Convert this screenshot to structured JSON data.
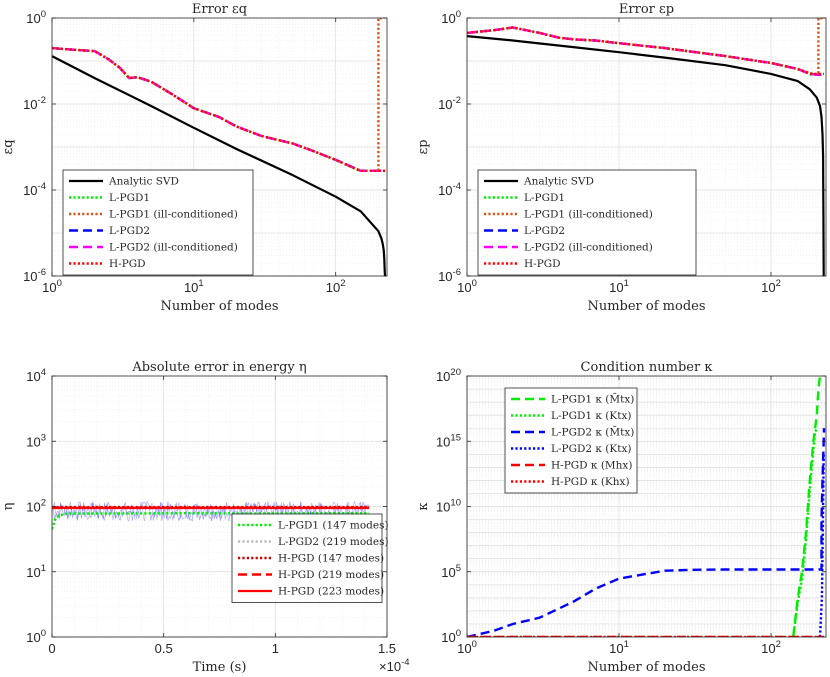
{
  "chart_data": [
    {
      "id": "eq",
      "type": "line",
      "title": "Error εq",
      "xlabel": "Number of modes",
      "ylabel": "εq",
      "xscale": "log",
      "yscale": "log",
      "xlim": [
        1,
        230
      ],
      "ylim": [
        1e-06,
        1
      ],
      "xticks": [
        1,
        10,
        100
      ],
      "xtick_labels": [
        "10",
        "10",
        "10"
      ],
      "xtick_exp": [
        "0",
        "1",
        "2"
      ],
      "yticks": [
        1e-06,
        0.0001,
        0.01,
        1
      ],
      "ytick_labels": [
        "10",
        "10",
        "10",
        "10"
      ],
      "ytick_exp": [
        "-6",
        "-4",
        "-2",
        "0"
      ],
      "grid": true,
      "legend_position": "bottom-left",
      "legend": [
        {
          "label": "Analytic SVD",
          "color": "#000000",
          "style": "solid"
        },
        {
          "label": "L-PGD1",
          "color": "#00ee00",
          "style": "dotted"
        },
        {
          "label": "L-PGD1 (ill-conditioned)",
          "color": "#d95319",
          "style": "dotted"
        },
        {
          "label": "L-PGD2",
          "color": "#0000ff",
          "style": "dashed"
        },
        {
          "label": "L-PGD2 (ill-conditioned)",
          "color": "#ff00ff",
          "style": "dashed"
        },
        {
          "label": "H-PGD",
          "color": "#ff0000",
          "style": "dotted"
        }
      ],
      "series": [
        {
          "name": "Analytic SVD",
          "color": "#000000",
          "style": "solid",
          "x": [
            1,
            2,
            5,
            10,
            20,
            50,
            100,
            150,
            200,
            210,
            215,
            218,
            220,
            221,
            222,
            223
          ],
          "y": [
            0.13,
            0.04,
            0.009,
            0.0028,
            0.0009,
            0.00022,
            7e-05,
            3.2e-05,
            1.1e-05,
            7.5e-06,
            5.5e-06,
            4e-06,
            2.5e-06,
            1.8e-06,
            1.2e-06,
            1e-06
          ]
        },
        {
          "name": "L-PGD2",
          "color": "#0000ff",
          "style": "dashed",
          "x": [
            1,
            1.5,
            2,
            2.5,
            3,
            3.5,
            4,
            5,
            7,
            10,
            15,
            20,
            30,
            50,
            70,
            100,
            150,
            200,
            220
          ],
          "y": [
            0.2,
            0.18,
            0.17,
            0.11,
            0.07,
            0.04,
            0.042,
            0.033,
            0.017,
            0.008,
            0.005,
            0.003,
            0.0018,
            0.0012,
            0.0008,
            0.0005,
            0.00028,
            0.00028,
            0.00028
          ]
        },
        {
          "name": "L-PGD2 (ill-conditioned)",
          "color": "#ff00ff",
          "style": "dashed",
          "x": [
            1,
            1.5,
            2,
            2.5,
            3,
            3.5,
            4,
            5,
            7,
            10,
            15,
            20,
            30,
            50,
            70,
            100,
            150,
            200,
            220
          ],
          "y": [
            0.2,
            0.18,
            0.17,
            0.11,
            0.07,
            0.04,
            0.042,
            0.033,
            0.017,
            0.008,
            0.005,
            0.003,
            0.0018,
            0.0012,
            0.0008,
            0.0005,
            0.00028,
            0.00028,
            0.00028
          ]
        },
        {
          "name": "L-PGD1",
          "color": "#00ee00",
          "style": "dotted",
          "x": [
            1,
            1.5,
            2,
            2.5,
            3,
            3.5,
            4,
            5,
            7,
            10,
            15,
            20,
            30,
            50,
            70,
            100,
            147
          ],
          "y": [
            0.2,
            0.18,
            0.17,
            0.11,
            0.07,
            0.04,
            0.042,
            0.033,
            0.017,
            0.008,
            0.005,
            0.003,
            0.0018,
            0.0012,
            0.0008,
            0.0005,
            0.00028
          ]
        },
        {
          "name": "L-PGD1 (ill-conditioned)",
          "color": "#d95319",
          "style": "dotted",
          "x": [
            1,
            1.5,
            2,
            2.5,
            3,
            3.5,
            4,
            5,
            7,
            10,
            15,
            20,
            30,
            50,
            70,
            100,
            150,
            190,
            200,
            200,
            210,
            220
          ],
          "y": [
            0.2,
            0.18,
            0.17,
            0.11,
            0.07,
            0.04,
            0.042,
            0.033,
            0.017,
            0.008,
            0.005,
            0.003,
            0.0018,
            0.0012,
            0.0008,
            0.0005,
            0.00028,
            0.00028,
            0.00028,
            1,
            1,
            1
          ]
        },
        {
          "name": "H-PGD",
          "color": "#ff0000",
          "style": "dotted",
          "x": [
            1,
            1.5,
            2,
            2.5,
            3,
            3.5,
            4,
            5,
            7,
            10,
            15,
            20,
            30,
            50,
            70,
            100,
            150,
            200,
            223
          ],
          "y": [
            0.2,
            0.18,
            0.17,
            0.11,
            0.07,
            0.04,
            0.042,
            0.033,
            0.017,
            0.008,
            0.005,
            0.003,
            0.0018,
            0.0012,
            0.0008,
            0.0005,
            0.00028,
            0.00028,
            0.00028
          ]
        }
      ]
    },
    {
      "id": "ep",
      "type": "line",
      "title": "Error εp",
      "xlabel": "Number of modes",
      "ylabel": "εp",
      "xscale": "log",
      "yscale": "log",
      "xlim": [
        1,
        230
      ],
      "ylim": [
        1e-06,
        1
      ],
      "xticks": [
        1,
        10,
        100
      ],
      "xtick_labels": [
        "10",
        "10",
        "10"
      ],
      "xtick_exp": [
        "0",
        "1",
        "2"
      ],
      "yticks": [
        1e-06,
        0.0001,
        0.01,
        1
      ],
      "ytick_labels": [
        "10",
        "10",
        "10",
        "10"
      ],
      "ytick_exp": [
        "-6",
        "-4",
        "-2",
        "0"
      ],
      "grid": true,
      "legend_position": "bottom-left",
      "legend": [
        {
          "label": "Analytic SVD",
          "color": "#000000",
          "style": "solid"
        },
        {
          "label": "L-PGD1",
          "color": "#00ee00",
          "style": "dotted"
        },
        {
          "label": "L-PGD1 (ill-conditioned)",
          "color": "#d95319",
          "style": "dotted"
        },
        {
          "label": "L-PGD2",
          "color": "#0000ff",
          "style": "dashed"
        },
        {
          "label": "L-PGD2 (ill-conditioned)",
          "color": "#ff00ff",
          "style": "dashed"
        },
        {
          "label": "H-PGD",
          "color": "#ff0000",
          "style": "dotted"
        }
      ],
      "series": [
        {
          "name": "Analytic SVD",
          "color": "#000000",
          "style": "solid",
          "x": [
            1,
            2,
            5,
            10,
            20,
            50,
            100,
            150,
            180,
            200,
            210,
            215,
            218,
            220,
            221,
            222
          ],
          "y": [
            0.38,
            0.3,
            0.21,
            0.16,
            0.12,
            0.08,
            0.05,
            0.034,
            0.022,
            0.014,
            0.009,
            0.005,
            0.002,
            0.0006,
            3e-05,
            1e-06
          ]
        },
        {
          "name": "L-PGD2",
          "color": "#0000ff",
          "style": "dashed",
          "x": [
            1,
            1.5,
            2,
            3,
            4,
            5,
            7,
            10,
            20,
            50,
            100,
            150,
            180,
            200,
            220
          ],
          "y": [
            0.45,
            0.52,
            0.6,
            0.45,
            0.35,
            0.32,
            0.3,
            0.26,
            0.2,
            0.13,
            0.09,
            0.065,
            0.05,
            0.048,
            0.048
          ]
        },
        {
          "name": "L-PGD2 (ill-conditioned)",
          "color": "#ff00ff",
          "style": "dashed",
          "x": [
            1,
            1.5,
            2,
            3,
            4,
            5,
            7,
            10,
            20,
            50,
            100,
            150,
            180,
            200,
            220
          ],
          "y": [
            0.45,
            0.52,
            0.6,
            0.45,
            0.35,
            0.32,
            0.3,
            0.26,
            0.2,
            0.13,
            0.09,
            0.065,
            0.05,
            0.048,
            0.048
          ]
        },
        {
          "name": "L-PGD1",
          "color": "#00ee00",
          "style": "dotted",
          "x": [
            1,
            1.5,
            2,
            3,
            4,
            5,
            7,
            10,
            20,
            50,
            100,
            147,
            170,
            190
          ],
          "y": [
            0.45,
            0.52,
            0.6,
            0.45,
            0.35,
            0.32,
            0.3,
            0.26,
            0.2,
            0.13,
            0.09,
            0.066,
            0.055,
            0.045
          ]
        },
        {
          "name": "L-PGD1 (ill-conditioned)",
          "color": "#d95319",
          "style": "dotted",
          "x": [
            1,
            1.5,
            2,
            3,
            4,
            5,
            7,
            10,
            20,
            50,
            100,
            150,
            190,
            205,
            205,
            215,
            222
          ],
          "y": [
            0.45,
            0.52,
            0.6,
            0.45,
            0.35,
            0.32,
            0.3,
            0.26,
            0.2,
            0.13,
            0.09,
            0.065,
            0.05,
            0.05,
            1,
            1,
            1
          ]
        },
        {
          "name": "H-PGD",
          "color": "#ff0000",
          "style": "dotted",
          "x": [
            1,
            1.5,
            2,
            3,
            4,
            5,
            7,
            10,
            20,
            50,
            100,
            150,
            180,
            200,
            223
          ],
          "y": [
            0.45,
            0.52,
            0.6,
            0.45,
            0.35,
            0.32,
            0.3,
            0.26,
            0.2,
            0.13,
            0.09,
            0.065,
            0.05,
            0.05,
            0.05
          ]
        }
      ]
    },
    {
      "id": "eta",
      "type": "line",
      "title": "Absolute error in energy η",
      "xlabel": "Time (s)",
      "ylabel": "η",
      "xscale": "linear",
      "yscale": "log",
      "xlim": [
        0,
        0.00015
      ],
      "ylim": [
        1,
        10000
      ],
      "x_multiplier": "×10",
      "x_multiplier_exp": "-4",
      "xticks": [
        0,
        5e-05,
        0.0001,
        0.00015
      ],
      "xtick_labels": [
        "0",
        "0.5",
        "1",
        "1.5"
      ],
      "yticks": [
        1,
        10,
        100,
        1000,
        10000
      ],
      "ytick_labels": [
        "10",
        "10",
        "10",
        "10",
        "10"
      ],
      "ytick_exp": [
        "0",
        "1",
        "2",
        "3",
        "4"
      ],
      "grid": true,
      "legend_position": "bottom-right",
      "legend": [
        {
          "label": "L-PGD1 (147 modes)",
          "color": "#00ee00",
          "style": "dotted"
        },
        {
          "label": "L-PGD2 (219 modes)",
          "color": "#bbbbbb",
          "style": "dotted"
        },
        {
          "label": "H-PGD (147 modes)",
          "color": "#cc0000",
          "style": "dotted"
        },
        {
          "label": "H-PGD (219 modes)",
          "color": "#ff0000",
          "style": "dashed"
        },
        {
          "label": "H-PGD (223 modes)",
          "color": "#ff0000",
          "style": "solid"
        }
      ],
      "band": {
        "name": "L-PGD2 (219 modes)",
        "color": "#3b3bf0",
        "low": 60,
        "high": 120,
        "x_end": 0.000142
      },
      "series": [
        {
          "name": "L-PGD1 (147 modes)",
          "color": "#00ee00",
          "style": "dotted",
          "x": [
            0,
            1.5e-06,
            3e-06,
            4.5e-06,
            6e-06,
            7.5e-06,
            3e-05,
            6e-05,
            9e-05,
            0.00012,
            0.000142
          ],
          "y": [
            45,
            65,
            72,
            75,
            77,
            78,
            78,
            79,
            78,
            79,
            79
          ]
        },
        {
          "name": "H-PGD (147 modes)",
          "color": "#cc0000",
          "style": "dotted",
          "x": [
            0,
            0.000142
          ],
          "y": [
            98,
            98
          ]
        },
        {
          "name": "H-PGD (219 modes)",
          "color": "#ff0000",
          "style": "dashed",
          "x": [
            0,
            0.000142
          ],
          "y": [
            96,
            96
          ]
        },
        {
          "name": "H-PGD (223 modes)",
          "color": "#ff0000",
          "style": "solid",
          "x": [
            0,
            0.000142
          ],
          "y": [
            95,
            95
          ]
        }
      ]
    },
    {
      "id": "kappa",
      "type": "line",
      "title": "Condition number κ",
      "xlabel": "Number of modes",
      "ylabel": "κ",
      "xscale": "log",
      "yscale": "log",
      "xlim": [
        1,
        230
      ],
      "ylim": [
        1,
        1e+20
      ],
      "xticks": [
        1,
        10,
        100
      ],
      "xtick_labels": [
        "10",
        "10",
        "10"
      ],
      "xtick_exp": [
        "0",
        "1",
        "2"
      ],
      "yticks": [
        1,
        100000.0,
        10000000000.0,
        1000000000000000.0,
        1e+20
      ],
      "ytick_labels": [
        "10",
        "10",
        "10",
        "10",
        "10"
      ],
      "ytick_exp": [
        "0",
        "5",
        "10",
        "15",
        "20"
      ],
      "grid": true,
      "legend_position": "top-left",
      "legend": [
        {
          "label": "L-PGD1 κ (M̄tx)",
          "color": "#00ee00",
          "style": "dashed"
        },
        {
          "label": "L-PGD1 κ (Ktx)",
          "color": "#00ee00",
          "style": "dotted"
        },
        {
          "label": "L-PGD2 κ (M̄tx)",
          "color": "#0000ff",
          "style": "dashed"
        },
        {
          "label": "L-PGD2 κ (Ktx)",
          "color": "#0000ff",
          "style": "dotted"
        },
        {
          "label": "H-PGD κ (Mhx)",
          "color": "#ff0000",
          "style": "dashed"
        },
        {
          "label": "H-PGD κ (Khx)",
          "color": "#ff0000",
          "style": "dotted"
        }
      ],
      "series": [
        {
          "name": "L-PGD2 κ (M̄tx)",
          "color": "#0000ff",
          "style": "dashed",
          "x": [
            1,
            1.5,
            2,
            3,
            5,
            7,
            10,
            20,
            30,
            50,
            100,
            150,
            200,
            215,
            215,
            218,
            222,
            223
          ],
          "y": [
            1,
            3,
            10,
            30,
            500,
            5000,
            30000,
            120000,
            140000,
            150000,
            150000,
            150000,
            150000,
            150000,
            1000000000.0,
            1000000000000.0,
            1000000000000000.0,
            1e+16
          ]
        },
        {
          "name": "L-PGD2 κ (Ktx)",
          "color": "#0000ff",
          "style": "dotted",
          "x": [
            210,
            216,
            219,
            221,
            222
          ],
          "y": [
            1,
            1000.0,
            100000000.0,
            1000000000000.0,
            100000000000000.0
          ]
        },
        {
          "name": "L-PGD1 κ (M̄tx)",
          "color": "#00ee00",
          "style": "dashed",
          "x": [
            140,
            150,
            160,
            170,
            180,
            190,
            195,
            200,
            205,
            210
          ],
          "y": [
            1,
            1000,
            100000.0,
            100000000.0,
            1000000000000.0,
            1000000000000000.0,
            1e+16,
            1e+17,
            1e+19,
            1e+20
          ]
        },
        {
          "name": "L-PGD1 κ (Ktx)",
          "color": "#00ee00",
          "style": "dotted",
          "x": [
            140,
            150,
            160,
            170,
            180,
            190,
            195,
            200
          ],
          "y": [
            1,
            500,
            30000.0,
            30000000.0,
            200000000000.0,
            300000000000000.0,
            5000000000000000.0,
            1e+16
          ]
        },
        {
          "name": "H-PGD κ (Mhx)",
          "color": "#ff0000",
          "style": "dashed",
          "x": [
            1,
            223
          ],
          "y": [
            1,
            1
          ]
        },
        {
          "name": "H-PGD κ (Khx)",
          "color": "#ff0000",
          "style": "dotted",
          "x": [
            1,
            223
          ],
          "y": [
            1,
            1
          ]
        }
      ]
    }
  ]
}
